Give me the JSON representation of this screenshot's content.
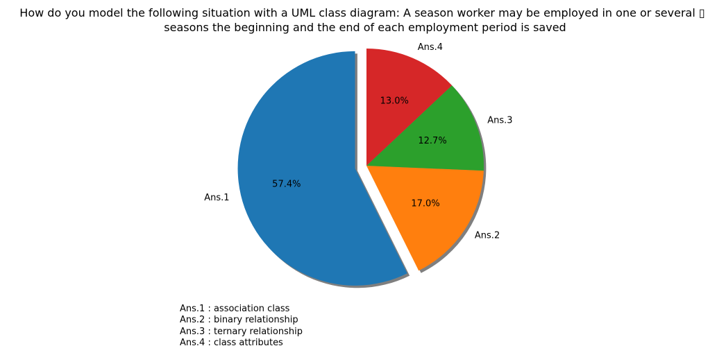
{
  "chart_data": {
    "type": "pie",
    "title_lines": [
      "How do you model the following situation with a UML class diagram: A season worker may be employed in one or several ▯",
      "seasons the beginning and the end of each employment period is saved"
    ],
    "slices": [
      {
        "label": "Ans.1",
        "value": 57.4,
        "pct_label": "57.4%",
        "color": "#1f77b4",
        "exploded": true
      },
      {
        "label": "Ans.2",
        "value": 17.0,
        "pct_label": "17.0%",
        "color": "#ff7f0e",
        "exploded": false
      },
      {
        "label": "Ans.3",
        "value": 12.7,
        "pct_label": "12.7%",
        "color": "#2ca02c",
        "exploded": false
      },
      {
        "label": "Ans.4",
        "value": 13.0,
        "pct_label": "13.0%",
        "color": "#d62728",
        "exploded": false
      }
    ],
    "shadow": true,
    "start_angle": 90,
    "direction": "counterclockwise",
    "notes": [
      "Ans.1 : association class",
      "Ans.2 : binary relationship",
      "Ans.3 : ternary relationship",
      "Ans.4 : class attributes"
    ]
  }
}
